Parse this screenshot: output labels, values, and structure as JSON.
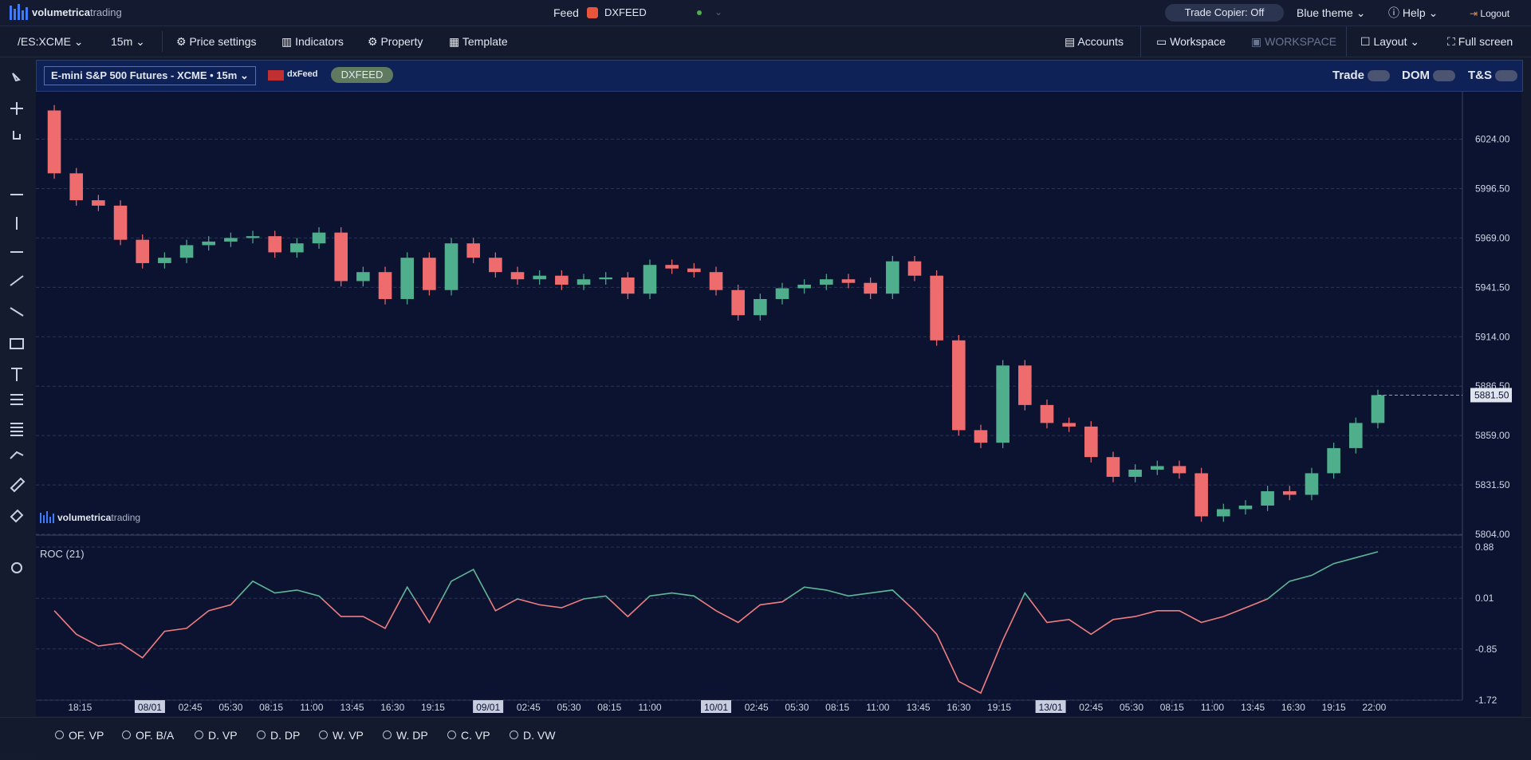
{
  "header": {
    "logo": "volumetrica",
    "logo_suffix": "trading",
    "feed_label": "Feed",
    "feed_name": "DXFEED",
    "trade_copier": "Trade Copier: Off",
    "theme": "Blue theme",
    "help": "Help",
    "logout": "Logout"
  },
  "toolbar": {
    "symbol": "/ES:XCME",
    "timeframe": "15m",
    "items": [
      "Price settings",
      "Indicators",
      "Property",
      "Template"
    ],
    "right_items": [
      "Accounts",
      "Workspace",
      "WORKSPACE",
      "Layout",
      "Full screen"
    ]
  },
  "chart_header": {
    "instrument": "E-mini S&P 500 Futures - XCME • 15m",
    "provider": "dxFeed",
    "feed": "DXFEED",
    "toggles": [
      "Trade",
      "DOM",
      "T&S"
    ]
  },
  "watermark": {
    "logo": "volumetrica",
    "logo_suffix": "trading"
  },
  "chart_data": [
    {
      "type": "candlestick",
      "up_color": "#4fae8c",
      "down_color": "#ee6b6e",
      "grid": true,
      "x": [
        5,
        11,
        17,
        23,
        29,
        35,
        41,
        47,
        53,
        59,
        65,
        71,
        77,
        83,
        89,
        95,
        101,
        107,
        113,
        119,
        125,
        131,
        137,
        143,
        149,
        155,
        161,
        167,
        173,
        179,
        185,
        191,
        197,
        203,
        209,
        215,
        221,
        227,
        233,
        239,
        245,
        251,
        257,
        263,
        269,
        275,
        281,
        287,
        293,
        299,
        305,
        311,
        317,
        323,
        329,
        335,
        341,
        347,
        353,
        359,
        365
      ],
      "open": [
        6040,
        6005,
        5990,
        5987,
        5968,
        5955,
        5958,
        5965,
        5967,
        5969,
        5970,
        5961,
        5966,
        5972,
        5945,
        5950,
        5935,
        5958,
        5940,
        5966,
        5958,
        5950,
        5946,
        5948,
        5943,
        5946,
        5947,
        5938,
        5954,
        5952,
        5950,
        5940,
        5926,
        5935,
        5941,
        5943,
        5946,
        5944,
        5938,
        5956,
        5948,
        5912,
        5862,
        5855,
        5898,
        5876,
        5866,
        5864,
        5847,
        5836,
        5840,
        5842,
        5838,
        5814,
        5818,
        5820,
        5828,
        5826,
        5838,
        5852,
        5866
      ],
      "high": [
        6043,
        6008,
        5993,
        5990,
        5971,
        5961,
        5968,
        5970,
        5972,
        5973,
        5973,
        5969,
        5975,
        5975,
        5953,
        5953,
        5961,
        5961,
        5969,
        5969,
        5961,
        5953,
        5951,
        5951,
        5949,
        5950,
        5950,
        5957,
        5957,
        5955,
        5953,
        5943,
        5938,
        5944,
        5946,
        5949,
        5949,
        5947,
        5959,
        5959,
        5951,
        5915,
        5865,
        5901,
        5901,
        5879,
        5869,
        5867,
        5850,
        5843,
        5845,
        5845,
        5841,
        5821,
        5823,
        5831,
        5831,
        5841,
        5855,
        5869,
        5884.5
      ],
      "low": [
        6002,
        5987,
        5984,
        5965,
        5952,
        5952,
        5955,
        5962,
        5964,
        5966,
        5958,
        5958,
        5963,
        5942,
        5942,
        5932,
        5932,
        5937,
        5937,
        5955,
        5947,
        5943,
        5943,
        5940,
        5940,
        5943,
        5935,
        5935,
        5949,
        5947,
        5937,
        5923,
        5923,
        5932,
        5938,
        5940,
        5941,
        5935,
        5935,
        5945,
        5909,
        5859,
        5852,
        5852,
        5873,
        5863,
        5861,
        5844,
        5833,
        5833,
        5837,
        5835,
        5811,
        5811,
        5815,
        5817,
        5823,
        5823,
        5835,
        5849,
        5863
      ],
      "close": [
        6005,
        5990,
        5987,
        5968,
        5955,
        5958,
        5965,
        5967,
        5969,
        5970,
        5961,
        5966,
        5972,
        5945,
        5950,
        5935,
        5958,
        5940,
        5966,
        5958,
        5950,
        5946,
        5948,
        5943,
        5946,
        5947,
        5938,
        5954,
        5952,
        5950,
        5940,
        5926,
        5935,
        5941,
        5943,
        5946,
        5944,
        5938,
        5956,
        5948,
        5912,
        5862,
        5855,
        5898,
        5876,
        5866,
        5864,
        5847,
        5836,
        5840,
        5842,
        5838,
        5814,
        5818,
        5820,
        5828,
        5826,
        5838,
        5852,
        5866,
        5881.5
      ],
      "price_line": {
        "value": 5881.5,
        "label": "5881.50"
      },
      "xlim": [
        0,
        388
      ],
      "ylim": [
        5804,
        6050
      ],
      "yticks": [
        {
          "value": 5804,
          "label": "5804.00"
        },
        {
          "value": 5831.5,
          "label": "5831.50"
        },
        {
          "value": 5859,
          "label": "5859.00"
        },
        {
          "value": 5886.5,
          "label": "5886.50"
        },
        {
          "value": 5914,
          "label": "5914.00"
        },
        {
          "value": 5941.5,
          "label": "5941.50"
        },
        {
          "value": 5969,
          "label": "5969.00"
        },
        {
          "value": 5996.5,
          "label": "5996.50"
        },
        {
          "value": 6024,
          "label": "6024.00"
        }
      ]
    },
    {
      "type": "line",
      "title": "ROC (21)",
      "up_color": "#5fb696",
      "down_color": "#ee7d7f",
      "grid": true,
      "x": [
        5,
        11,
        17,
        23,
        29,
        35,
        41,
        47,
        53,
        59,
        65,
        71,
        77,
        83,
        89,
        95,
        101,
        107,
        113,
        119,
        125,
        131,
        137,
        143,
        149,
        155,
        161,
        167,
        173,
        179,
        185,
        191,
        197,
        203,
        209,
        215,
        221,
        227,
        233,
        239,
        245,
        251,
        257,
        263,
        269,
        275,
        281,
        287,
        293,
        299,
        305,
        311,
        317,
        323,
        329,
        335,
        341,
        347,
        353,
        359,
        365
      ],
      "values": [
        -0.2,
        -0.6,
        -0.8,
        -0.75,
        -1.0,
        -0.55,
        -0.5,
        -0.2,
        -0.1,
        0.3,
        0.1,
        0.15,
        0.05,
        -0.3,
        -0.3,
        -0.5,
        0.2,
        -0.4,
        0.3,
        0.5,
        -0.2,
        0.0,
        -0.1,
        -0.15,
        0.0,
        0.05,
        -0.3,
        0.05,
        0.1,
        0.05,
        -0.2,
        -0.4,
        -0.1,
        -0.05,
        0.2,
        0.15,
        0.05,
        0.1,
        0.15,
        -0.2,
        -0.6,
        -1.4,
        -1.6,
        -0.7,
        0.1,
        -0.4,
        -0.35,
        -0.6,
        -0.35,
        -0.3,
        -0.2,
        -0.2,
        -0.4,
        -0.3,
        -0.15,
        0.0,
        0.3,
        0.4,
        0.6,
        0.7,
        0.8
      ],
      "xlim": [
        0,
        388
      ],
      "ylim": [
        -1.72,
        0.88
      ],
      "yticks": [
        -1.72,
        -0.85,
        0.01,
        0.88
      ],
      "xticks": [
        {
          "value": 12,
          "label": "18:15"
        },
        {
          "value": 31,
          "label": "08/01"
        },
        {
          "value": 42,
          "label": "02:45"
        },
        {
          "value": 53,
          "label": "05:30"
        },
        {
          "value": 64,
          "label": "08:15"
        },
        {
          "value": 75,
          "label": "11:00"
        },
        {
          "value": 86,
          "label": "13:45"
        },
        {
          "value": 97,
          "label": "16:30"
        },
        {
          "value": 108,
          "label": "19:15"
        },
        {
          "value": 123,
          "label": "09/01"
        },
        {
          "value": 134,
          "label": "02:45"
        },
        {
          "value": 145,
          "label": "05:30"
        },
        {
          "value": 156,
          "label": "08:15"
        },
        {
          "value": 167,
          "label": "11:00"
        },
        {
          "value": 185,
          "label": "10/01"
        },
        {
          "value": 196,
          "label": "02:45"
        },
        {
          "value": 207,
          "label": "05:30"
        },
        {
          "value": 218,
          "label": "08:15"
        },
        {
          "value": 229,
          "label": "11:00"
        },
        {
          "value": 240,
          "label": "13:45"
        },
        {
          "value": 251,
          "label": "16:30"
        },
        {
          "value": 262,
          "label": "19:15"
        },
        {
          "value": 276,
          "label": "13/01"
        },
        {
          "value": 287,
          "label": "02:45"
        },
        {
          "value": 298,
          "label": "05:30"
        },
        {
          "value": 309,
          "label": "08:15"
        },
        {
          "value": 320,
          "label": "11:00"
        },
        {
          "value": 331,
          "label": "13:45"
        },
        {
          "value": 342,
          "label": "16:30"
        },
        {
          "value": 353,
          "label": "19:15"
        },
        {
          "value": 364,
          "label": "22:00"
        }
      ]
    }
  ],
  "footer": {
    "studies": [
      "OF. VP",
      "OF. B/A",
      "D. VP",
      "D. DP",
      "W. VP",
      "W. DP",
      "C. VP",
      "D. VW"
    ]
  }
}
